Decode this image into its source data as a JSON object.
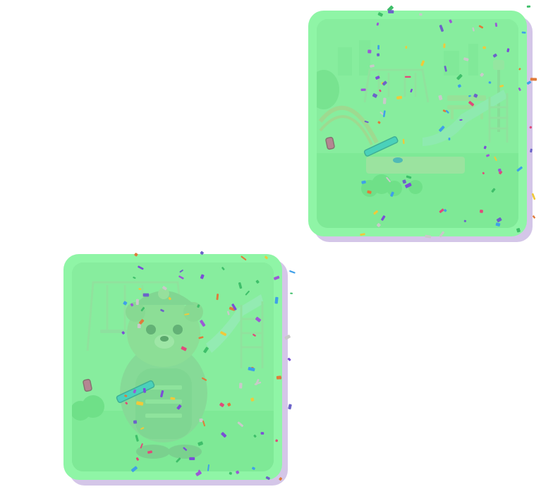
{
  "game": {
    "cards": [
      {
        "id": "playground",
        "scene": "playground-slide-swing-bench"
      },
      {
        "id": "bear-playground",
        "scene": "firefighter-bear-playground"
      }
    ],
    "colors": {
      "card_border": "#8ff5a6",
      "card_shadow": "#d4c6e8",
      "tint": "#7ef096",
      "accent_pink": "#e0308f",
      "accent_blue": "#1fb8d8"
    },
    "icons": [
      "sparkle-icon",
      "confetti-icon"
    ]
  }
}
